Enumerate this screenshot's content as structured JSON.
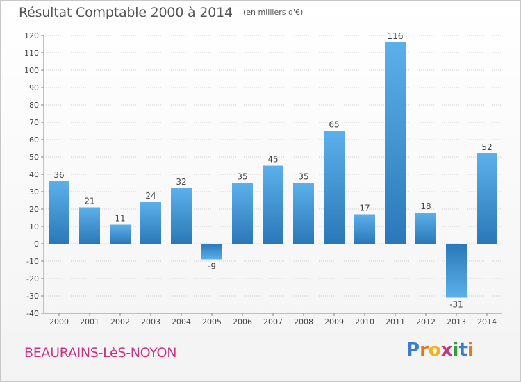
{
  "title": "Résultat Comptable 2000 à 2014",
  "subtitle": "(en milliers d'€)",
  "commune": "BEAURAINS-LèS-NOYON",
  "logo": {
    "text": "Proxiti",
    "letters": [
      {
        "ch": "P",
        "color": "#3a7ec8"
      },
      {
        "ch": "r",
        "color": "#e8741b"
      },
      {
        "ch": "o",
        "color": "#f2b21a"
      },
      {
        "ch": "x",
        "color": "#c8347f"
      },
      {
        "ch": "i",
        "color": "#3a9a3a"
      },
      {
        "ch": "t",
        "color": "#3a7ec8"
      },
      {
        "ch": "i",
        "color": "#e8741b"
      }
    ]
  },
  "colors": {
    "bar_light": "#5cb0ea",
    "bar_dark": "#2a78b8",
    "grid": "#cfcfcf",
    "axis_text": "#444444",
    "title": "#555555",
    "commune": "#c8347f"
  },
  "chart_data": {
    "type": "bar",
    "title": "Résultat Comptable 2000 à 2014",
    "subtitle": "(en milliers d'€)",
    "categories": [
      "2000",
      "2001",
      "2002",
      "2003",
      "2004",
      "2005",
      "2006",
      "2007",
      "2008",
      "2009",
      "2010",
      "2011",
      "2012",
      "2013",
      "2014"
    ],
    "values": [
      36,
      21,
      11,
      24,
      32,
      -9,
      35,
      45,
      35,
      65,
      17,
      116,
      18,
      -31,
      52
    ],
    "value_labels": [
      "36",
      "21",
      "11",
      "24",
      "32",
      "-9",
      "35",
      "45",
      "35",
      "65",
      "17",
      "116",
      "18",
      "-31",
      "52"
    ],
    "ylim": [
      -40,
      120
    ],
    "yticks": [
      -40,
      -30,
      -20,
      -10,
      0,
      10,
      20,
      30,
      40,
      50,
      60,
      70,
      80,
      90,
      100,
      110,
      120
    ],
    "grid": true,
    "legend": "none"
  }
}
